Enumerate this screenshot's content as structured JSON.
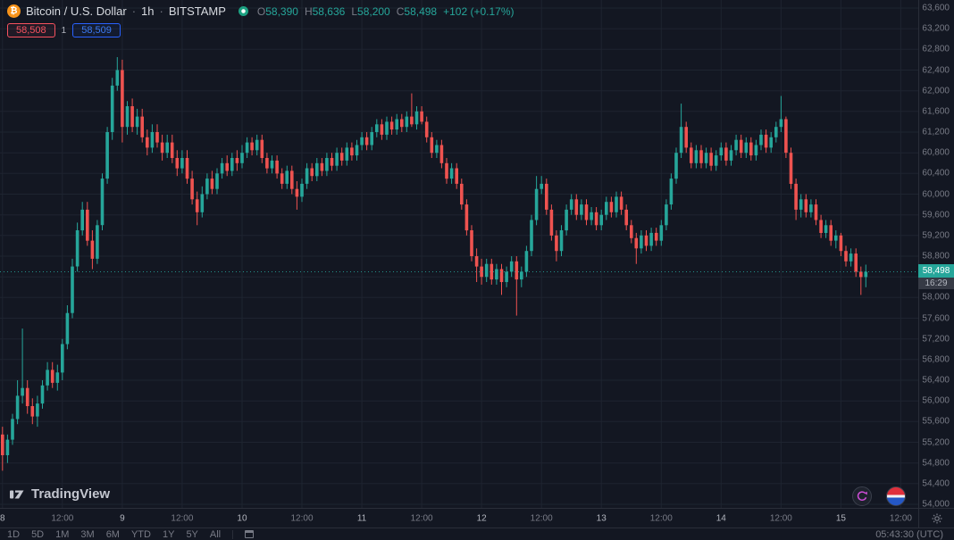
{
  "header": {
    "symbol": "Bitcoin / U.S. Dollar",
    "separator": "·",
    "interval": "1h",
    "exchange": "BITSTAMP",
    "ohlc": {
      "o_label": "O",
      "o": "58,390",
      "h_label": "H",
      "h": "58,636",
      "l_label": "L",
      "l": "58,200",
      "c_label": "C",
      "c": "58,498",
      "change": "+102 (+0.17%)"
    },
    "sell_price": "58,508",
    "spread": "1",
    "buy_price": "58,509"
  },
  "attribution": {
    "brand": "TradingView"
  },
  "price_line": {
    "value": 58498,
    "label": "58,498",
    "countdown": "16:29"
  },
  "toolbar": {
    "ranges": [
      "1D",
      "5D",
      "1M",
      "3M",
      "6M",
      "YTD",
      "1Y",
      "5Y",
      "All"
    ],
    "clock": "05:43:30 (UTC)"
  },
  "colors": {
    "up": "#26a69a",
    "down": "#ef5350",
    "bg": "#131722",
    "grid": "#1e2430",
    "axis_text": "#787b86",
    "sell": "#f7525f",
    "buy": "#2962ff",
    "accent_orange": "#f7931a"
  },
  "chart_data": {
    "type": "candlestick",
    "title": "Bitcoin / U.S. Dollar 1h BITSTAMP",
    "interval": "1h",
    "total_slots": 184,
    "y_axis": {
      "min": 54000,
      "max": 63600,
      "step": 400
    },
    "axes": {
      "price_ticks": [
        "63,600",
        "63,200",
        "62,800",
        "62,400",
        "62,000",
        "61,600",
        "61,200",
        "60,800",
        "60,400",
        "60,000",
        "59,600",
        "59,200",
        "58,800",
        "58,400",
        "58,000",
        "57,600",
        "57,200",
        "56,800",
        "56,400",
        "56,000",
        "55,600",
        "55,200",
        "54,800",
        "54,400",
        "54,000"
      ],
      "time_ticks": [
        {
          "i": 0,
          "label": "8",
          "day": true
        },
        {
          "i": 12,
          "label": "12:00",
          "day": false
        },
        {
          "i": 24,
          "label": "9",
          "day": true
        },
        {
          "i": 36,
          "label": "12:00",
          "day": false
        },
        {
          "i": 48,
          "label": "10",
          "day": true
        },
        {
          "i": 60,
          "label": "12:00",
          "day": false
        },
        {
          "i": 72,
          "label": "11",
          "day": true
        },
        {
          "i": 84,
          "label": "12:00",
          "day": false
        },
        {
          "i": 96,
          "label": "12",
          "day": true
        },
        {
          "i": 108,
          "label": "12:00",
          "day": false
        },
        {
          "i": 120,
          "label": "13",
          "day": true
        },
        {
          "i": 132,
          "label": "12:00",
          "day": false
        },
        {
          "i": 144,
          "label": "14",
          "day": true
        },
        {
          "i": 156,
          "label": "12:00",
          "day": false
        },
        {
          "i": 168,
          "label": "15",
          "day": true
        },
        {
          "i": 180,
          "label": "12:00",
          "day": false
        }
      ]
    },
    "open_first": 55350,
    "close": [
      54950,
      55250,
      55650,
      56100,
      56250,
      55900,
      55700,
      55950,
      56300,
      56600,
      56350,
      56550,
      57100,
      57700,
      58600,
      59300,
      59700,
      59100,
      58750,
      59400,
      60300,
      61200,
      62100,
      62400,
      61300,
      61700,
      61300,
      61500,
      61100,
      60900,
      61200,
      61000,
      60800,
      61000,
      60700,
      60500,
      60700,
      60300,
      59900,
      59650,
      60000,
      60300,
      60100,
      60400,
      60600,
      60450,
      60700,
      60600,
      60800,
      61000,
      60850,
      61050,
      60700,
      60500,
      60650,
      60400,
      60200,
      60450,
      60100,
      59950,
      60200,
      60500,
      60350,
      60600,
      60450,
      60700,
      60550,
      60800,
      60650,
      60900,
      60750,
      60950,
      61100,
      60950,
      61200,
      61350,
      61150,
      61400,
      61250,
      61450,
      61300,
      61500,
      61350,
      61600,
      61400,
      61100,
      60800,
      60950,
      60600,
      60300,
      60500,
      60200,
      59800,
      59300,
      58800,
      58600,
      58400,
      58650,
      58350,
      58550,
      58300,
      58500,
      58700,
      58350,
      58500,
      58900,
      59500,
      60100,
      60200,
      59700,
      59200,
      58900,
      59300,
      59700,
      59900,
      59600,
      59800,
      59500,
      59650,
      59400,
      59600,
      59850,
      59650,
      59950,
      59700,
      59400,
      59150,
      58950,
      59200,
      59000,
      59250,
      59100,
      59400,
      59800,
      60300,
      60800,
      61300,
      60900,
      60600,
      60850,
      60600,
      60800,
      60550,
      60750,
      60900,
      60650,
      60850,
      61050,
      60800,
      61000,
      60750,
      60950,
      61150,
      60900,
      61100,
      61300,
      61450,
      60800,
      60200,
      59700,
      59900,
      59650,
      59800,
      59500,
      59250,
      59400,
      59100,
      59200,
      58900,
      58700,
      58850,
      58500,
      58396,
      58498
    ],
    "high": [
      55500,
      55350,
      55750,
      56400,
      57400,
      56400,
      56050,
      56100,
      56400,
      56750,
      56750,
      56700,
      57200,
      57850,
      58750,
      59450,
      59850,
      59850,
      59300,
      59500,
      60400,
      61300,
      62250,
      62650,
      62600,
      61800,
      61850,
      61650,
      61650,
      61250,
      61350,
      61350,
      61150,
      61150,
      61150,
      60850,
      60850,
      60850,
      60450,
      60050,
      60150,
      60400,
      60450,
      60500,
      60700,
      60750,
      60800,
      60850,
      60950,
      61100,
      61100,
      61150,
      61150,
      60800,
      60750,
      60750,
      60500,
      60550,
      60550,
      60250,
      60300,
      60600,
      60600,
      60700,
      60700,
      60800,
      60800,
      60900,
      60900,
      61000,
      61000,
      61050,
      61200,
      61200,
      61300,
      61450,
      61450,
      61500,
      61500,
      61550,
      61550,
      61600,
      61950,
      61700,
      61700,
      61500,
      61200,
      61050,
      61050,
      60700,
      60600,
      60600,
      60300,
      59900,
      59400,
      58950,
      58750,
      58750,
      58750,
      58650,
      58650,
      58600,
      58800,
      58800,
      58600,
      59000,
      59600,
      60350,
      60350,
      60300,
      59800,
      59300,
      59400,
      59800,
      60000,
      60000,
      59900,
      59900,
      59750,
      59750,
      59700,
      59950,
      59950,
      60050,
      60050,
      59800,
      59500,
      59250,
      59300,
      59300,
      59350,
      59350,
      59500,
      59900,
      60400,
      60900,
      61750,
      61400,
      61000,
      60950,
      60950,
      60900,
      60900,
      60850,
      61000,
      61000,
      60950,
      61150,
      61150,
      61100,
      61100,
      61050,
      61250,
      61250,
      61200,
      61400,
      61900,
      61500,
      60900,
      60300,
      60000,
      60000,
      59900,
      59900,
      59600,
      59500,
      59500,
      59300,
      59250,
      59000,
      58950,
      58950,
      58600,
      58636
    ],
    "low": [
      54650,
      54800,
      55150,
      55550,
      55950,
      55750,
      55550,
      55500,
      55850,
      56200,
      56250,
      56200,
      56400,
      57000,
      57600,
      58500,
      59200,
      59000,
      58550,
      58650,
      59300,
      60200,
      61050,
      62000,
      61000,
      61150,
      61200,
      61150,
      61000,
      60750,
      60800,
      60900,
      60650,
      60700,
      60600,
      60350,
      60400,
      60200,
      59800,
      59400,
      59550,
      59900,
      60000,
      60000,
      60300,
      60350,
      60350,
      60450,
      60500,
      60700,
      60750,
      60750,
      60600,
      60400,
      60400,
      60300,
      60100,
      60100,
      60000,
      59700,
      59850,
      60100,
      60250,
      60250,
      60350,
      60350,
      60450,
      60450,
      60550,
      60550,
      60650,
      60650,
      60850,
      60850,
      60850,
      61100,
      61050,
      61050,
      61150,
      61150,
      61200,
      61200,
      61300,
      61250,
      61350,
      61000,
      60700,
      60700,
      60500,
      60200,
      60200,
      60100,
      59700,
      59200,
      58700,
      58300,
      58250,
      58300,
      58250,
      58250,
      58050,
      58200,
      58400,
      57650,
      58200,
      58400,
      58800,
      59400,
      60000,
      59600,
      59100,
      58700,
      58800,
      59200,
      59600,
      59500,
      59500,
      59400,
      59400,
      59300,
      59300,
      59500,
      59550,
      59550,
      59600,
      59300,
      59050,
      58650,
      58850,
      58900,
      58900,
      59000,
      59000,
      59300,
      59700,
      60200,
      60700,
      60800,
      60500,
      60500,
      60500,
      60500,
      60450,
      60450,
      60650,
      60550,
      60550,
      60750,
      60700,
      60700,
      60650,
      60650,
      60850,
      60800,
      60800,
      61000,
      61200,
      60700,
      60100,
      59500,
      59550,
      59550,
      59550,
      59400,
      59150,
      59150,
      59000,
      58950,
      58800,
      58600,
      58600,
      58400,
      58050,
      58200
    ]
  }
}
